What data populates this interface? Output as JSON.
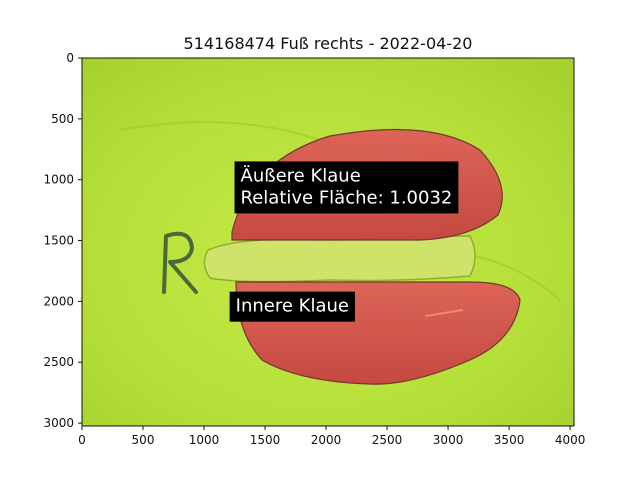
{
  "chart_data": {
    "type": "image",
    "title": "514168474 Fuß rechts - 2022-04-20",
    "xlabel": "",
    "ylabel": "",
    "xlim": [
      0,
      4032
    ],
    "ylim": [
      3024,
      0
    ],
    "x_ticks": [
      0,
      500,
      1000,
      1500,
      2000,
      2500,
      3000,
      3500,
      4000
    ],
    "y_ticks": [
      0,
      500,
      1000,
      1500,
      2000,
      2500,
      3000
    ],
    "grid": false,
    "annotations": [
      {
        "lines": [
          "Äußere Klaue",
          "Relative Fläche: 1.0032"
        ],
        "x": 1250,
        "y": 850
      },
      {
        "lines": [
          "Innere Klaue"
        ],
        "x": 1210,
        "y": 1920
      }
    ],
    "regions": [
      {
        "name": "outer",
        "color": "#d84a4a"
      },
      {
        "name": "inner",
        "color": "#d84a4a"
      }
    ],
    "background_color": "#b9e33a",
    "handwritten_mark": "R"
  }
}
